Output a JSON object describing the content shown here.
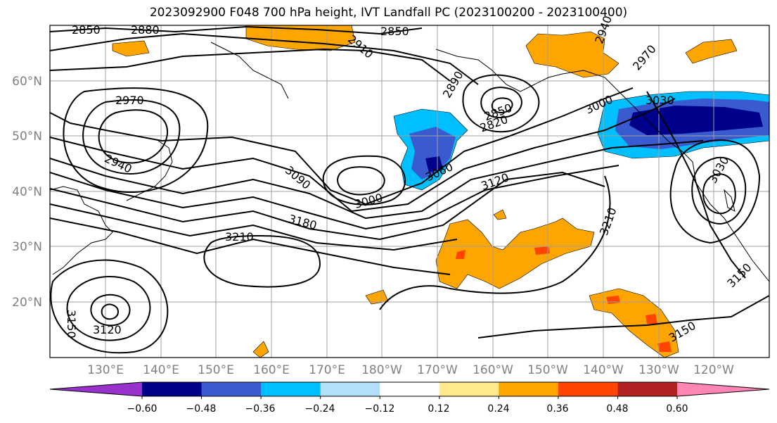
{
  "title": "2023092900 F048 700 hPa height, IVT Landfall PC (2023100200 - 2023100400)",
  "lat_labels": [
    "60°N",
    "50°N",
    "40°N",
    "30°N",
    "20°N"
  ],
  "lon_labels": [
    "130°E",
    "140°E",
    "150°E",
    "160°E",
    "170°E",
    "180°W",
    "170°W",
    "160°W",
    "150°W",
    "140°W",
    "130°W",
    "120°W"
  ],
  "colorbar": {
    "tick_labels": [
      "−0.60",
      "−0.48",
      "−0.36",
      "−0.24",
      "−0.12",
      "0.12",
      "0.24",
      "0.36",
      "0.48",
      "0.60"
    ],
    "colors": [
      "#9932cc",
      "#00008b",
      "#3a5bd0",
      "#00bfff",
      "#b0e0fa",
      "#ffffff",
      "#ffe98a",
      "#ffa500",
      "#ff4500",
      "#b22222",
      "#ff85b5"
    ]
  },
  "contour_labels": [
    "2850",
    "2880",
    "2850",
    "2910",
    "2940",
    "2970",
    "2890",
    "2820",
    "2850",
    "2970",
    "2940",
    "3000",
    "3030",
    "3030",
    "3060",
    "3090",
    "3120",
    "3000",
    "3180",
    "3210",
    "3210",
    "3150",
    "3150",
    "3120",
    "3150"
  ]
}
